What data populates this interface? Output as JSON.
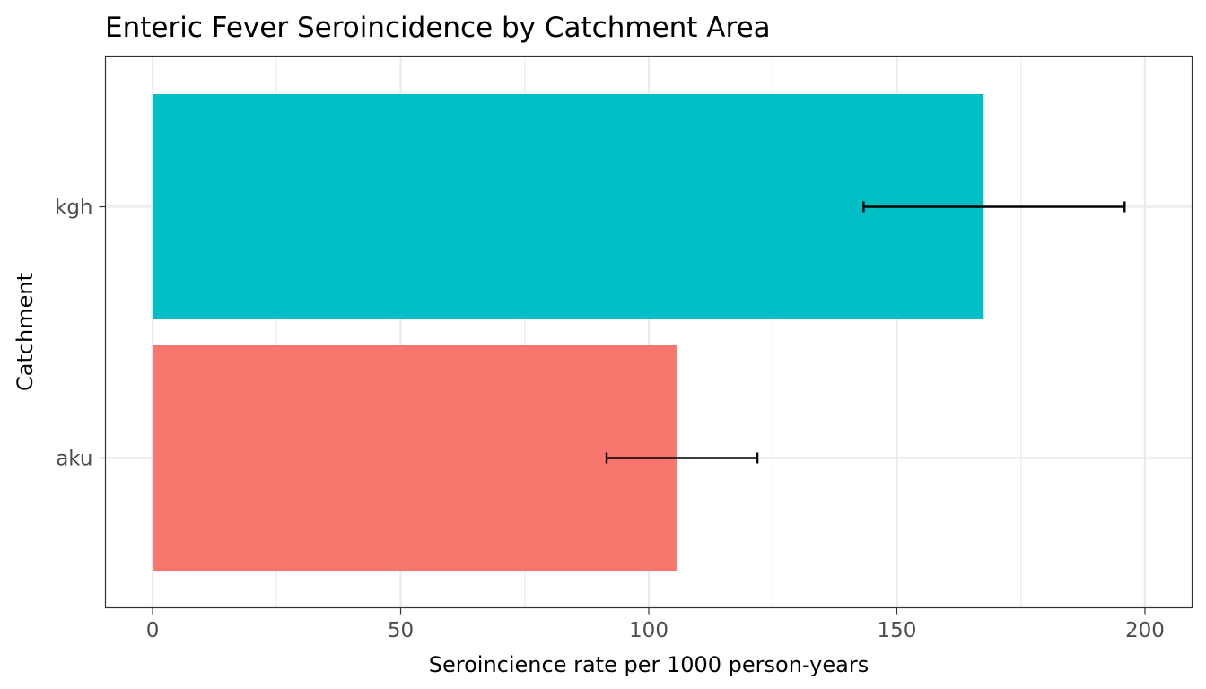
{
  "chart_data": {
    "type": "bar",
    "orientation": "horizontal",
    "title": "Enteric Fever Seroincidence by Catchment Area",
    "xlabel": "Seroincience rate per 1000 person-years",
    "ylabel": "Catchment",
    "xlim": [
      -9.5,
      209.5
    ],
    "xticks": [
      0,
      50,
      100,
      150,
      200
    ],
    "xtick_labels": [
      "0",
      "50",
      "100",
      "150",
      "200"
    ],
    "x_minor_gridlines": [
      25,
      75,
      125,
      175
    ],
    "categories": [
      "aku",
      "kgh"
    ],
    "values": [
      105.6,
      167.5
    ],
    "error_low": [
      91.5,
      143.3
    ],
    "error_high": [
      121.9,
      195.9
    ],
    "colors": [
      "#F8766D",
      "#00BFC4"
    ],
    "grid": true,
    "legend": "none"
  }
}
